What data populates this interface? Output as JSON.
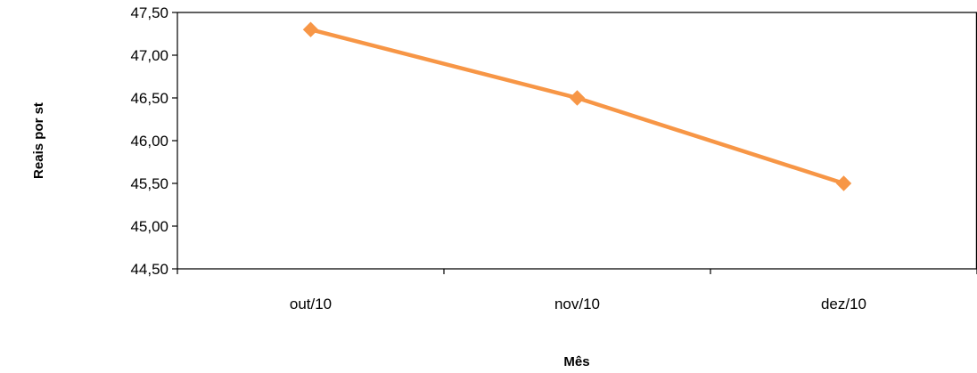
{
  "chart_data": {
    "type": "line",
    "title": "",
    "xlabel": "Mês",
    "ylabel": "Reais por st",
    "categories": [
      "out/10",
      "nov/10",
      "dez/10"
    ],
    "series": [
      {
        "values": [
          47.3,
          46.5,
          45.5
        ],
        "color": "#F79646"
      }
    ],
    "ylim": [
      44.5,
      47.5
    ],
    "ytick_step": 0.5,
    "ytick_labels": [
      "44,50",
      "45,00",
      "45,50",
      "46,00",
      "46,50",
      "47,00",
      "47,50"
    ],
    "grid": false,
    "legend": "none",
    "marker": "diamond"
  }
}
